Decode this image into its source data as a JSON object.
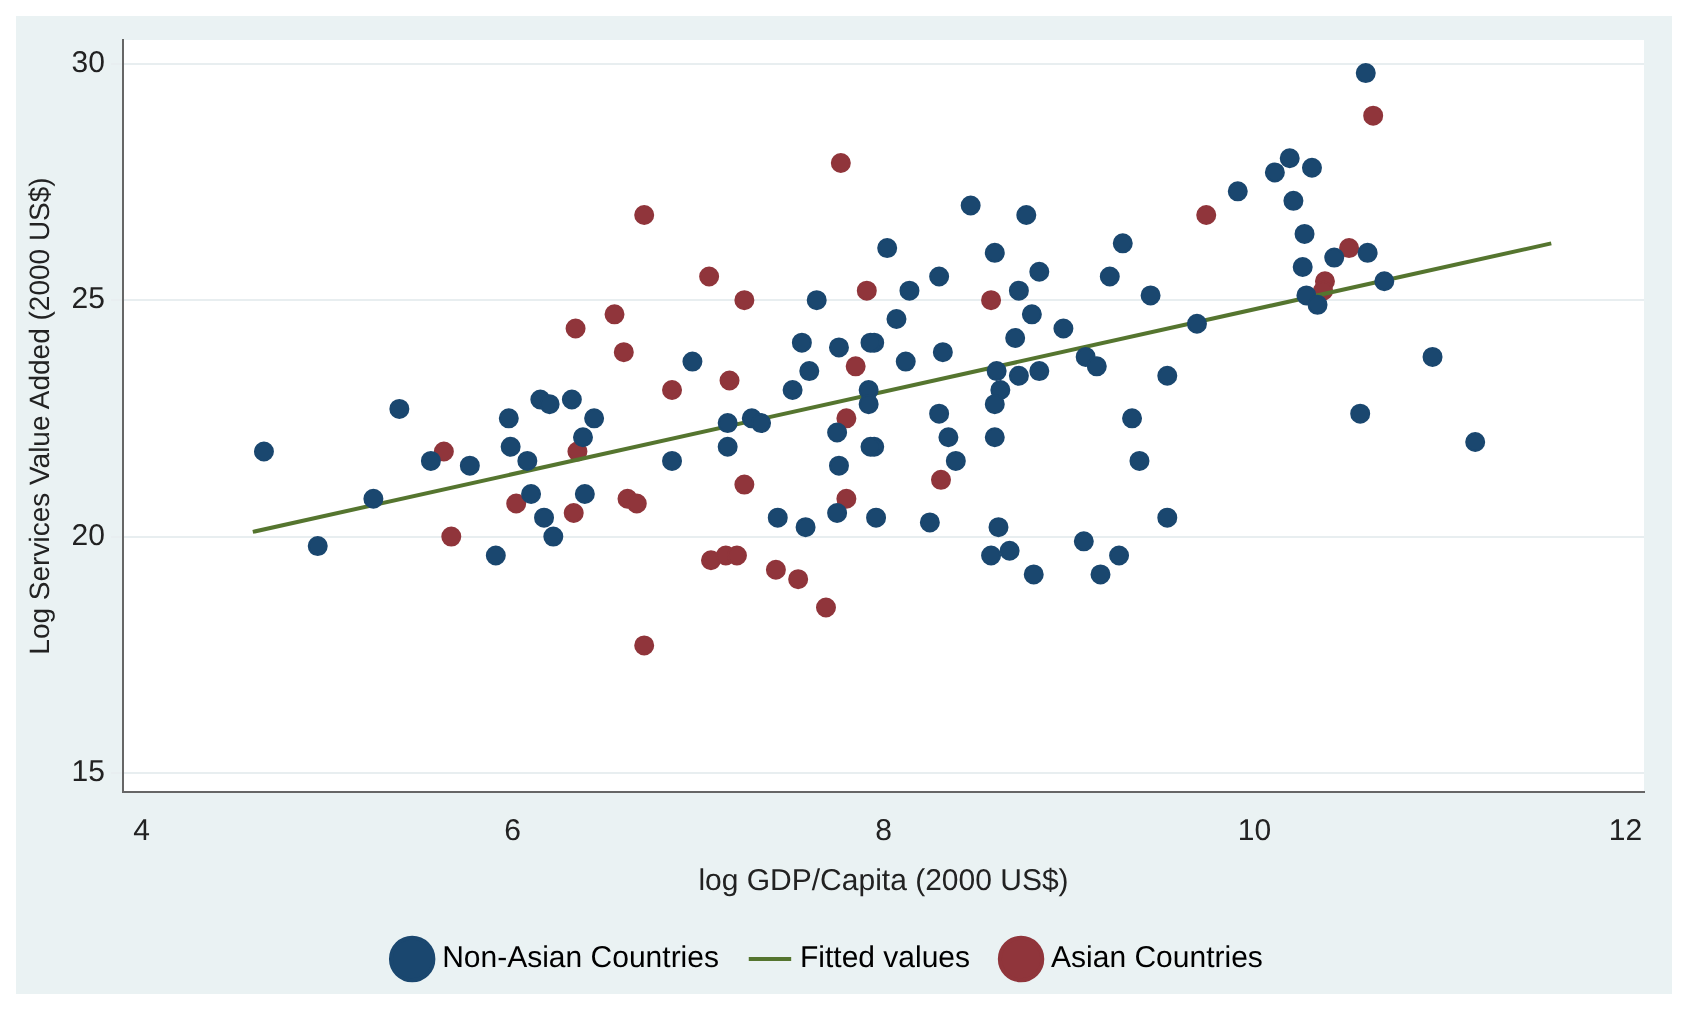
{
  "chart_data": {
    "type": "scatter",
    "xlabel": "log GDP/Capita (2000 US$)",
    "ylabel": "Log Services Value Added (2000 US$)",
    "xlim": [
      3.9,
      12.1
    ],
    "xticks": [
      4,
      6,
      8,
      10,
      12
    ],
    "ylim": [
      14.6,
      30.5
    ],
    "yticks": [
      15,
      20,
      25,
      30
    ],
    "grid": "y",
    "legend": "bottom",
    "marker": "circle",
    "series": [
      {
        "name": "Non-Asian Countries",
        "color": "#1a476f",
        "x": [
          4.66,
          4.95,
          5.39,
          5.25,
          5.56,
          5.77,
          5.91,
          5.98,
          5.99,
          6.08,
          6.15,
          6.2,
          6.32,
          6.44,
          6.38,
          6.1,
          6.17,
          6.22,
          6.39,
          6.86,
          6.97,
          7.16,
          7.16,
          7.29,
          7.34,
          7.64,
          7.56,
          7.76,
          7.6,
          7.51,
          7.75,
          7.76,
          7.43,
          7.58,
          7.75,
          7.92,
          7.92,
          7.95,
          7.95,
          7.96,
          10.6,
          8.47,
          8.77,
          8.02,
          8.6,
          8.84,
          8.3,
          8.14,
          8.73,
          8.8,
          8.07,
          8.97,
          8.71,
          7.93,
          8.12,
          8.32,
          9.29,
          9.22,
          9.44,
          9.09,
          9.15,
          9.69,
          9.53,
          9.91,
          10.11,
          10.19,
          10.31,
          10.21,
          10.27,
          10.26,
          10.61,
          10.43,
          10.7,
          10.28,
          10.34,
          10.96,
          10.57,
          11.19,
          8.61,
          8.73,
          8.84,
          8.63,
          8.6,
          8.6,
          8.3,
          8.35,
          8.39,
          7.93,
          9.34,
          9.38,
          9.53,
          8.25,
          8.62,
          8.58,
          8.68,
          8.81,
          9.08,
          9.27,
          9.17
        ],
        "values": [
          21.8,
          19.8,
          22.7,
          20.8,
          21.6,
          21.5,
          19.6,
          22.5,
          21.9,
          21.6,
          22.9,
          22.8,
          22.9,
          22.5,
          22.1,
          20.9,
          20.4,
          20.0,
          20.9,
          21.6,
          23.7,
          22.4,
          21.9,
          22.5,
          22.4,
          25.0,
          24.1,
          24.0,
          23.5,
          23.1,
          22.2,
          21.5,
          20.4,
          20.2,
          20.5,
          23.1,
          22.8,
          24.1,
          21.9,
          20.4,
          29.8,
          27.0,
          26.8,
          26.1,
          26.0,
          25.6,
          25.5,
          25.2,
          25.2,
          24.7,
          24.6,
          24.4,
          24.2,
          24.1,
          23.7,
          23.9,
          26.2,
          25.5,
          25.1,
          23.8,
          23.6,
          24.5,
          23.4,
          27.3,
          27.7,
          28.0,
          27.8,
          27.1,
          26.4,
          25.7,
          26.0,
          25.9,
          25.4,
          25.1,
          24.9,
          23.8,
          22.6,
          22.0,
          23.5,
          23.4,
          23.5,
          23.1,
          22.8,
          22.1,
          22.6,
          22.1,
          21.6,
          21.9,
          22.5,
          21.6,
          20.4,
          20.3,
          20.2,
          19.6,
          19.7,
          19.2,
          19.9,
          19.6,
          19.2
        ]
      },
      {
        "name": "Fitted values",
        "type": "line",
        "color": "#55752f",
        "marker": "none",
        "x": [
          4.6,
          11.6
        ],
        "values": [
          20.1,
          26.2
        ]
      },
      {
        "name": "Asian Countries",
        "color": "#90353b",
        "x": [
          5.63,
          5.67,
          6.02,
          6.34,
          6.55,
          6.6,
          6.35,
          6.33,
          6.62,
          6.67,
          6.71,
          6.71,
          7.06,
          7.25,
          6.86,
          7.17,
          7.25,
          7.07,
          7.15,
          7.21,
          7.42,
          7.54,
          7.69,
          7.91,
          7.85,
          7.8,
          7.8,
          7.77,
          8.58,
          8.31,
          9.74,
          10.51,
          10.38,
          10.37,
          10.64
        ],
        "values": [
          21.8,
          20.0,
          20.7,
          24.4,
          24.7,
          23.9,
          21.8,
          20.5,
          20.8,
          20.7,
          17.7,
          26.8,
          25.5,
          25.0,
          23.1,
          23.3,
          21.1,
          19.5,
          19.6,
          19.6,
          19.3,
          19.1,
          18.5,
          25.2,
          23.6,
          22.5,
          20.8,
          27.9,
          25.0,
          21.2,
          26.8,
          26.1,
          25.4,
          25.2,
          28.9
        ]
      }
    ]
  }
}
